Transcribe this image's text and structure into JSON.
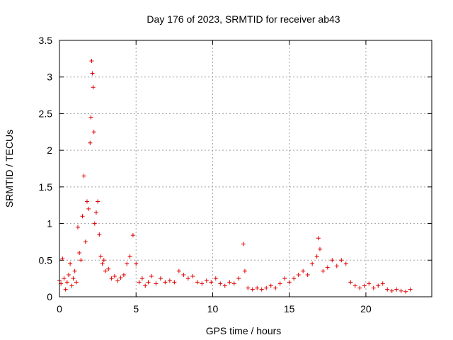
{
  "chart_data": {
    "type": "scatter",
    "title": "Day 176 of 2023, SRMTID for receiver ab43",
    "xlabel": "GPS time / hours",
    "ylabel": "SRMTID / TECUs",
    "xlim": [
      0,
      24.3
    ],
    "ylim": [
      0,
      3.5
    ],
    "xticks": [
      0,
      5,
      10,
      15,
      20
    ],
    "yticks": [
      0,
      0.5,
      1,
      1.5,
      2,
      2.5,
      3,
      3.5
    ],
    "xtick_labels": [
      "0",
      "5",
      "10",
      "15",
      "20"
    ],
    "ytick_labels": [
      "0",
      "0.5",
      "1",
      "1.5",
      "2",
      "2.5",
      "3",
      "3.5"
    ],
    "grid": true,
    "marker": "+",
    "series": [
      {
        "name": "SRMTID",
        "color": "#e00000",
        "x": [
          0.0,
          0.1,
          0.2,
          0.3,
          0.4,
          0.5,
          0.6,
          0.7,
          0.8,
          0.9,
          1.0,
          1.1,
          1.2,
          1.3,
          1.4,
          1.5,
          1.6,
          1.7,
          1.8,
          1.9,
          2.0,
          2.05,
          2.1,
          2.15,
          2.2,
          2.25,
          2.3,
          2.4,
          2.5,
          2.6,
          2.7,
          2.8,
          2.9,
          3.0,
          3.2,
          3.4,
          3.6,
          3.8,
          4.0,
          4.2,
          4.4,
          4.6,
          4.8,
          5.0,
          5.2,
          5.4,
          5.6,
          5.8,
          6.0,
          6.3,
          6.6,
          6.9,
          7.2,
          7.5,
          7.8,
          8.1,
          8.4,
          8.7,
          9.0,
          9.3,
          9.6,
          9.9,
          10.2,
          10.5,
          10.8,
          11.1,
          11.4,
          11.7,
          12.0,
          12.1,
          12.3,
          12.6,
          12.9,
          13.2,
          13.5,
          13.8,
          14.1,
          14.4,
          14.7,
          15.0,
          15.3,
          15.6,
          15.9,
          16.2,
          16.5,
          16.8,
          16.9,
          17.0,
          17.2,
          17.5,
          17.8,
          18.1,
          18.4,
          18.7,
          19.0,
          19.3,
          19.6,
          19.9,
          20.2,
          20.5,
          20.8,
          21.1,
          21.4,
          21.7,
          22.0,
          22.3,
          22.6,
          22.9
        ],
        "y": [
          0.22,
          0.18,
          0.52,
          0.25,
          0.1,
          0.2,
          0.3,
          0.45,
          0.15,
          0.25,
          0.35,
          0.2,
          0.95,
          0.6,
          0.5,
          1.1,
          1.65,
          0.75,
          1.3,
          1.2,
          2.1,
          2.45,
          3.22,
          3.05,
          2.86,
          2.25,
          1.0,
          1.15,
          1.3,
          0.85,
          0.55,
          0.45,
          0.5,
          0.35,
          0.38,
          0.25,
          0.28,
          0.22,
          0.26,
          0.3,
          0.45,
          0.55,
          0.84,
          0.45,
          0.2,
          0.25,
          0.15,
          0.2,
          0.28,
          0.18,
          0.25,
          0.2,
          0.22,
          0.2,
          0.35,
          0.3,
          0.25,
          0.28,
          0.2,
          0.18,
          0.22,
          0.2,
          0.25,
          0.18,
          0.15,
          0.2,
          0.18,
          0.25,
          0.72,
          0.35,
          0.12,
          0.1,
          0.12,
          0.1,
          0.12,
          0.15,
          0.12,
          0.18,
          0.25,
          0.2,
          0.25,
          0.3,
          0.35,
          0.3,
          0.45,
          0.55,
          0.8,
          0.65,
          0.35,
          0.4,
          0.5,
          0.42,
          0.5,
          0.45,
          0.2,
          0.15,
          0.12,
          0.15,
          0.18,
          0.12,
          0.15,
          0.18,
          0.1,
          0.08,
          0.1,
          0.08,
          0.07,
          0.1
        ]
      }
    ]
  }
}
